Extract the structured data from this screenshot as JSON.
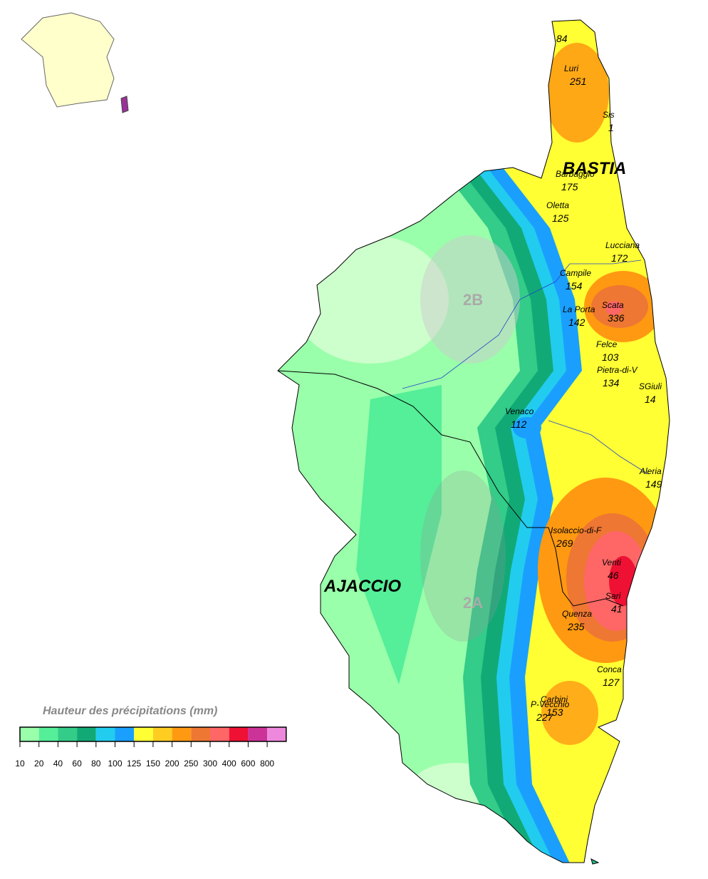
{
  "legend": {
    "title": "Hauteur des précipitations (mm)",
    "ticks": [
      10,
      20,
      40,
      60,
      80,
      100,
      125,
      150,
      200,
      250,
      300,
      400,
      600,
      800
    ],
    "colors": [
      "#ccffcc",
      "#99ffaa",
      "#55ee99",
      "#33cc88",
      "#11aa77",
      "#22ccee",
      "#1a9fff",
      "#ffff33",
      "#ffcc22",
      "#ff9911",
      "#ee7733",
      "#ff6666",
      "#ee1133",
      "#cc3399",
      "#ee88dd"
    ]
  },
  "cities": [
    "BASTIA",
    "AJACCIO"
  ],
  "departments": [
    "2B",
    "2A"
  ],
  "stations": [
    {
      "value": 84
    },
    {
      "name": "Luri",
      "value": 251
    },
    {
      "name": "Sis",
      "value": 1
    },
    {
      "name": "Barbaggio",
      "value": 175
    },
    {
      "name": "Oletta",
      "value": 125
    },
    {
      "name": "Lucciana",
      "value": 172
    },
    {
      "name": "Campile",
      "value": 154
    },
    {
      "name": "Scata",
      "value": 336
    },
    {
      "name": "La Porta",
      "value": 142
    },
    {
      "name": "Felce",
      "value": 103
    },
    {
      "name": "Pietra-di-V",
      "value": 134
    },
    {
      "name": "SGiuli",
      "value": 14
    },
    {
      "name": "Venaco",
      "value": 112
    },
    {
      "name": "Aleria",
      "value": 149
    },
    {
      "name": "Isolaccio-di-F",
      "value": 269
    },
    {
      "name": "Venti",
      "value": 46
    },
    {
      "name": "Sari",
      "value": 41
    },
    {
      "name": "Quenza",
      "value": 235
    },
    {
      "name": "Conca",
      "value": 127
    },
    {
      "name": "Carbini",
      "value": 153
    },
    {
      "name": "P-Vecchio",
      "value": 227
    }
  ]
}
